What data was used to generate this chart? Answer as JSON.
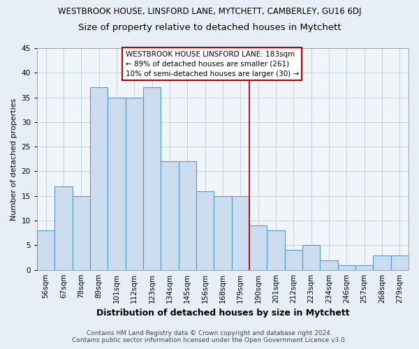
{
  "title": "WESTBROOK HOUSE, LINSFORD LANE, MYTCHETT, CAMBERLEY, GU16 6DJ",
  "subtitle": "Size of property relative to detached houses in Mytchett",
  "xlabel": "Distribution of detached houses by size in Mytchett",
  "ylabel": "Number of detached properties",
  "categories": [
    "56sqm",
    "67sqm",
    "78sqm",
    "89sqm",
    "101sqm",
    "112sqm",
    "123sqm",
    "134sqm",
    "145sqm",
    "156sqm",
    "168sqm",
    "179sqm",
    "190sqm",
    "201sqm",
    "212sqm",
    "223sqm",
    "234sqm",
    "246sqm",
    "257sqm",
    "268sqm",
    "279sqm"
  ],
  "values": [
    8,
    17,
    15,
    37,
    35,
    35,
    37,
    22,
    22,
    16,
    15,
    15,
    9,
    8,
    4,
    5,
    2,
    1,
    1,
    3,
    3
  ],
  "bar_color": "#ccddef",
  "bar_edge_color": "#5599cc",
  "ylim": [
    0,
    45
  ],
  "yticks": [
    0,
    5,
    10,
    15,
    20,
    25,
    30,
    35,
    40,
    45
  ],
  "vline_x_idx": 11.5,
  "vline_color": "#bb0000",
  "annotation_title": "WESTBROOK HOUSE LINSFORD LANE: 183sqm",
  "annotation_line1": "← 89% of detached houses are smaller (261)",
  "annotation_line2": "10% of semi-detached houses are larger (30) →",
  "footer_line1": "Contains HM Land Registry data © Crown copyright and database right 2024.",
  "footer_line2": "Contains public sector information licensed under the Open Government Licence v3.0.",
  "bg_color": "#e8eef5",
  "plot_bg_color": "#f0f5fa",
  "title_fontsize": 8.5,
  "subtitle_fontsize": 9.5,
  "xlabel_fontsize": 9,
  "ylabel_fontsize": 8,
  "footer_fontsize": 6.5,
  "tick_fontsize": 7.5,
  "ann_fontsize": 7.5
}
